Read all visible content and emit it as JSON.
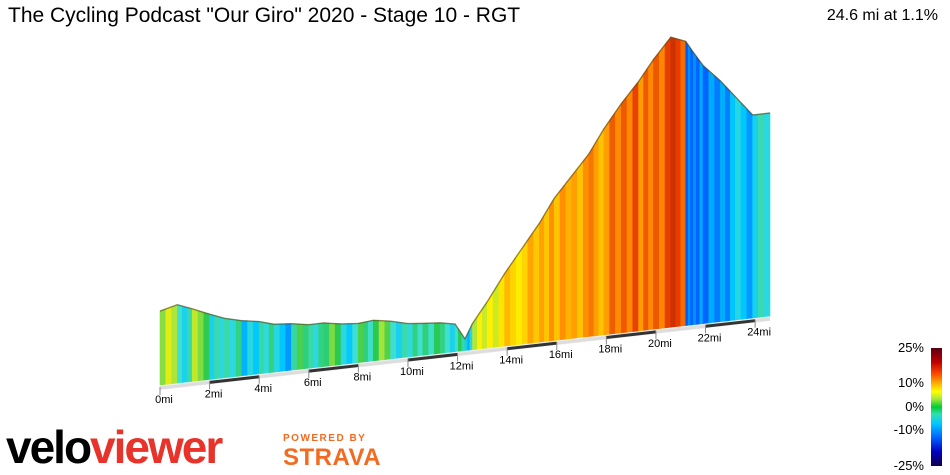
{
  "title": "The Cycling Podcast \"Our Giro\" 2020 - Stage 10 - RGT",
  "summary": "24.6 mi at 1.1%",
  "branding": {
    "logo_left": "velo",
    "logo_right": "viewer",
    "powered_by": "POWERED BY",
    "strava": "STRAVA"
  },
  "legend": {
    "labels": [
      "25%",
      "10%",
      "0%",
      "-10%",
      "-25%"
    ]
  },
  "chart_data": {
    "type": "area",
    "title": "The Cycling Podcast \"Our Giro\" 2020 - Stage 10 - RGT",
    "xlabel": "",
    "ylabel": "",
    "x_unit": "mi",
    "xlim": [
      0,
      24.6
    ],
    "ylim": [
      0,
      1
    ],
    "tick_labels": [
      "0mi",
      "2mi",
      "4mi",
      "6mi",
      "8mi",
      "10mi",
      "12mi",
      "14mi",
      "16mi",
      "18mi",
      "20mi",
      "22mi",
      "24mi"
    ],
    "tick_values": [
      0,
      2,
      4,
      6,
      8,
      10,
      12,
      14,
      16,
      18,
      20,
      22,
      24
    ],
    "relative_elevation": {
      "x": [
        0,
        0.7,
        1.3,
        2.0,
        2.6,
        3.3,
        4.0,
        4.6,
        5.3,
        6.0,
        6.6,
        7.3,
        8.0,
        8.6,
        9.3,
        10.0,
        10.6,
        11.3,
        11.9,
        12.3,
        12.6,
        13.2,
        13.9,
        14.6,
        15.3,
        15.9,
        16.6,
        17.3,
        17.9,
        18.6,
        19.3,
        19.9,
        20.6,
        21.2,
        21.5,
        21.9,
        22.6,
        23.2,
        23.9,
        24.6
      ],
      "y": [
        0.255,
        0.27,
        0.25,
        0.225,
        0.205,
        0.19,
        0.18,
        0.165,
        0.16,
        0.15,
        0.15,
        0.14,
        0.135,
        0.14,
        0.13,
        0.115,
        0.11,
        0.105,
        0.095,
        0.04,
        0.09,
        0.16,
        0.25,
        0.33,
        0.41,
        0.49,
        0.56,
        0.63,
        0.71,
        0.79,
        0.86,
        0.93,
        1.0,
        0.98,
        0.94,
        0.89,
        0.83,
        0.77,
        0.7,
        0.7
      ]
    },
    "gradient_percent_by_segment": [
      4,
      -3,
      2,
      -4,
      -3,
      -5,
      -2,
      -6,
      -1,
      -3,
      1,
      -4,
      -1,
      1,
      -4,
      -2,
      -1,
      -3,
      -2,
      -6,
      5,
      6,
      8,
      9,
      10,
      11,
      11,
      11,
      12,
      13,
      13,
      14,
      15,
      -10,
      -9,
      -8,
      -7,
      -6,
      -4,
      2
    ],
    "legend_scale": [
      25,
      10,
      0,
      -10,
      -25
    ]
  }
}
